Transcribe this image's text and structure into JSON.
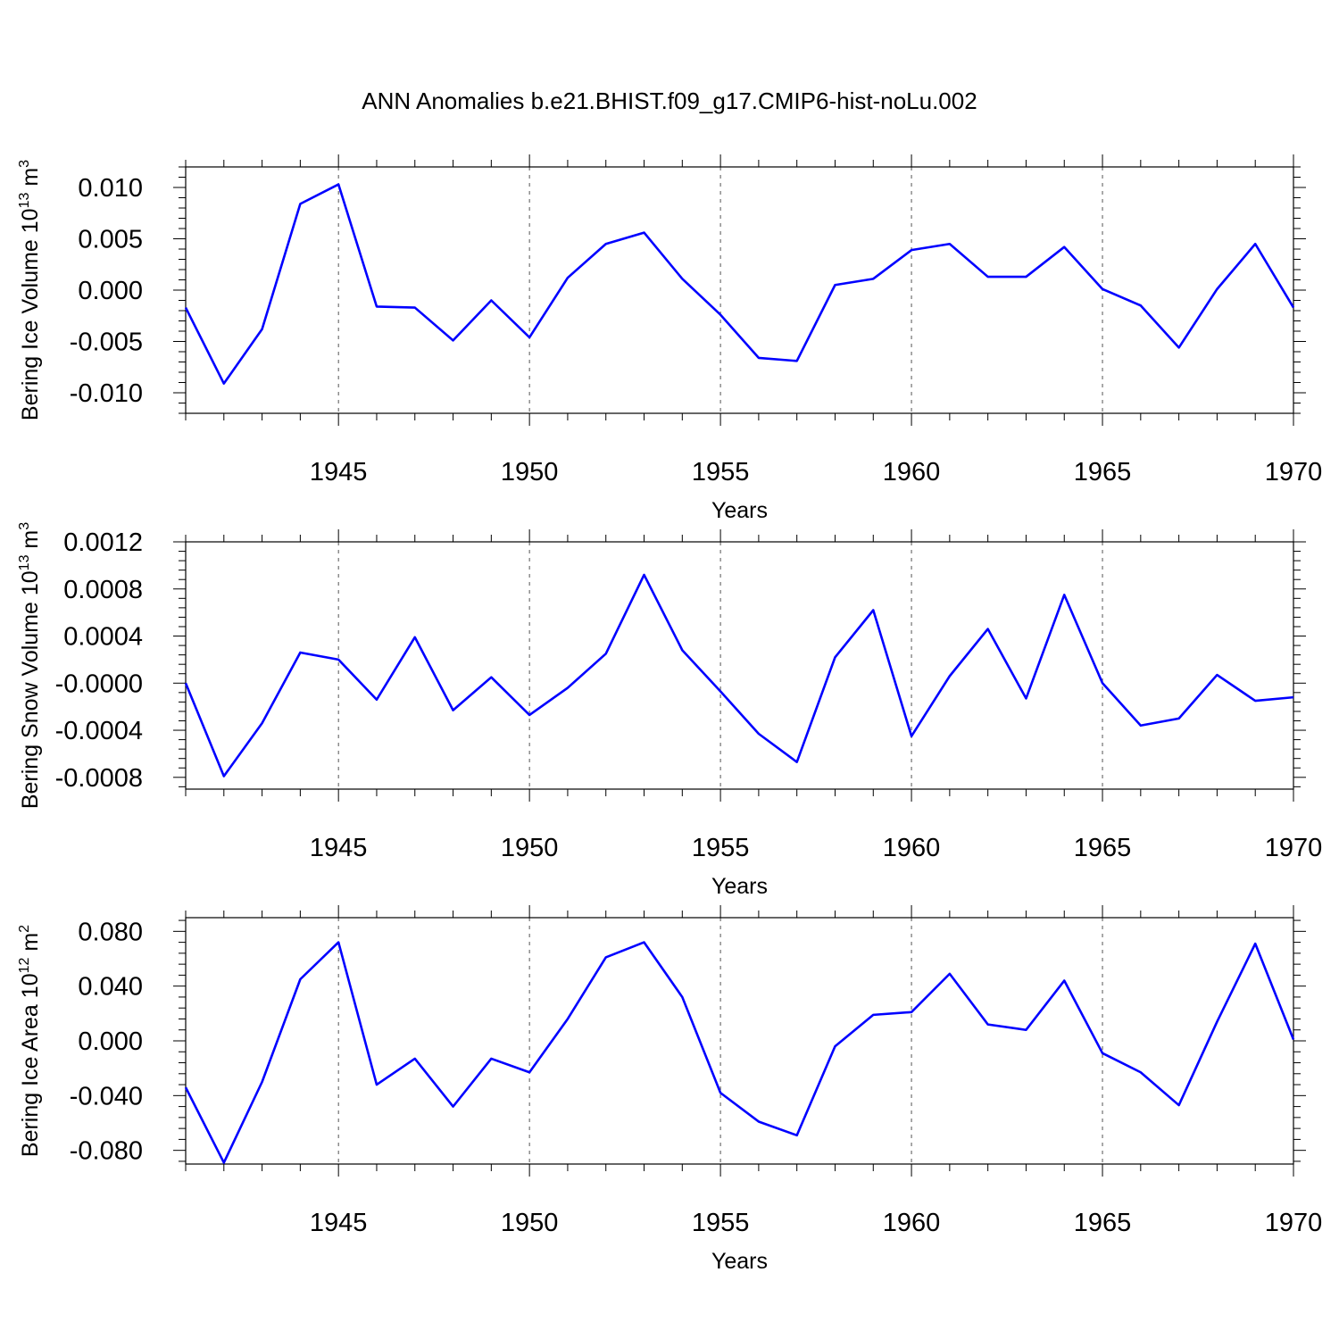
{
  "title": "ANN Anomalies b.e21.BHIST.f09_g17.CMIP6-hist-noLu.002",
  "line_color": "#0000ff",
  "chart_data": [
    {
      "type": "line",
      "xlabel": "Years",
      "ylabel": "Bering Ice Volume 10",
      "ylabel_sup": "13",
      "ylabel_unit": " m",
      "ylabel_unit_sup": "3",
      "xlim": [
        1941,
        1970
      ],
      "ylim": [
        -0.012,
        0.012
      ],
      "yticks": [
        -0.01,
        -0.005,
        0.0,
        0.005,
        0.01
      ],
      "ytick_labels": [
        "-0.010",
        "-0.005",
        "0.000",
        "0.005",
        "0.010"
      ],
      "xticks": [
        1945,
        1950,
        1955,
        1960,
        1965,
        1970
      ],
      "xtick_labels": [
        "1945",
        "1950",
        "1955",
        "1960",
        "1965",
        "1970"
      ],
      "grid": "dashed vertical at major x ticks",
      "x": [
        1941,
        1942,
        1943,
        1944,
        1945,
        1946,
        1947,
        1948,
        1949,
        1950,
        1951,
        1952,
        1953,
        1954,
        1955,
        1956,
        1957,
        1958,
        1959,
        1960,
        1961,
        1962,
        1963,
        1964,
        1965,
        1966,
        1967,
        1968,
        1969,
        1970
      ],
      "series": [
        {
          "values": [
            -0.0017,
            -0.0091,
            -0.0038,
            0.0084,
            0.0103,
            -0.0016,
            -0.0017,
            -0.0049,
            -0.001,
            -0.0046,
            0.0012,
            0.0045,
            0.0056,
            0.0011,
            -0.0024,
            -0.0066,
            -0.0069,
            0.0005,
            0.0011,
            0.0039,
            0.0045,
            0.0013,
            0.0013,
            0.0042,
            0.0001,
            -0.0015,
            -0.0056,
            0.0001,
            0.0045,
            -0.0017
          ]
        }
      ]
    },
    {
      "type": "line",
      "xlabel": "Years",
      "ylabel": "Bering Snow Volume 10",
      "ylabel_sup": "13",
      "ylabel_unit": " m",
      "ylabel_unit_sup": "3",
      "xlim": [
        1941,
        1970
      ],
      "ylim": [
        -0.0009,
        0.0012
      ],
      "yticks": [
        -0.0008,
        -0.0004,
        0.0,
        0.0004,
        0.0008,
        0.0012
      ],
      "ytick_labels": [
        "-0.0008",
        "-0.0004",
        "-0.0000",
        "0.0004",
        "0.0008",
        "0.0012"
      ],
      "xticks": [
        1945,
        1950,
        1955,
        1960,
        1965,
        1970
      ],
      "xtick_labels": [
        "1945",
        "1950",
        "1955",
        "1960",
        "1965",
        "1970"
      ],
      "grid": "dashed vertical at major x ticks",
      "x": [
        1941,
        1942,
        1943,
        1944,
        1945,
        1946,
        1947,
        1948,
        1949,
        1950,
        1951,
        1952,
        1953,
        1954,
        1955,
        1956,
        1957,
        1958,
        1959,
        1960,
        1961,
        1962,
        1963,
        1964,
        1965,
        1966,
        1967,
        1968,
        1969,
        1970
      ],
      "series": [
        {
          "values": [
            0.0,
            -0.00079,
            -0.00034,
            0.00026,
            0.0002,
            -0.00014,
            0.00039,
            -0.00023,
            5e-05,
            -0.00027,
            -4e-05,
            0.00025,
            0.00092,
            0.00028,
            -7e-05,
            -0.00043,
            -0.00067,
            0.00022,
            0.00062,
            -0.00045,
            6e-05,
            0.00046,
            -0.00013,
            0.00075,
            0.0,
            -0.00036,
            -0.0003,
            7e-05,
            -0.00015,
            -0.00012
          ]
        }
      ]
    },
    {
      "type": "line",
      "xlabel": "Years",
      "ylabel": "Bering Ice Area 10",
      "ylabel_sup": "12",
      "ylabel_unit": " m",
      "ylabel_unit_sup": "2",
      "xlim": [
        1941,
        1970
      ],
      "ylim": [
        -0.09,
        0.09
      ],
      "yticks": [
        -0.08,
        -0.04,
        0.0,
        0.04,
        0.08
      ],
      "ytick_labels": [
        "-0.080",
        "-0.040",
        "0.000",
        "0.040",
        "0.080"
      ],
      "xticks": [
        1945,
        1950,
        1955,
        1960,
        1965,
        1970
      ],
      "xtick_labels": [
        "1945",
        "1950",
        "1955",
        "1960",
        "1965",
        "1970"
      ],
      "grid": "dashed vertical at major x ticks",
      "x": [
        1941,
        1942,
        1943,
        1944,
        1945,
        1946,
        1947,
        1948,
        1949,
        1950,
        1951,
        1952,
        1953,
        1954,
        1955,
        1956,
        1957,
        1958,
        1959,
        1960,
        1961,
        1962,
        1963,
        1964,
        1965,
        1966,
        1967,
        1968,
        1969,
        1970
      ],
      "series": [
        {
          "values": [
            -0.034,
            -0.089,
            -0.03,
            0.045,
            0.072,
            -0.032,
            -0.013,
            -0.048,
            -0.013,
            -0.023,
            0.016,
            0.061,
            0.072,
            0.032,
            -0.038,
            -0.059,
            -0.069,
            -0.004,
            0.019,
            0.021,
            0.049,
            0.012,
            0.008,
            0.044,
            -0.009,
            -0.023,
            -0.047,
            0.014,
            0.071,
            0.001
          ]
        }
      ]
    }
  ]
}
